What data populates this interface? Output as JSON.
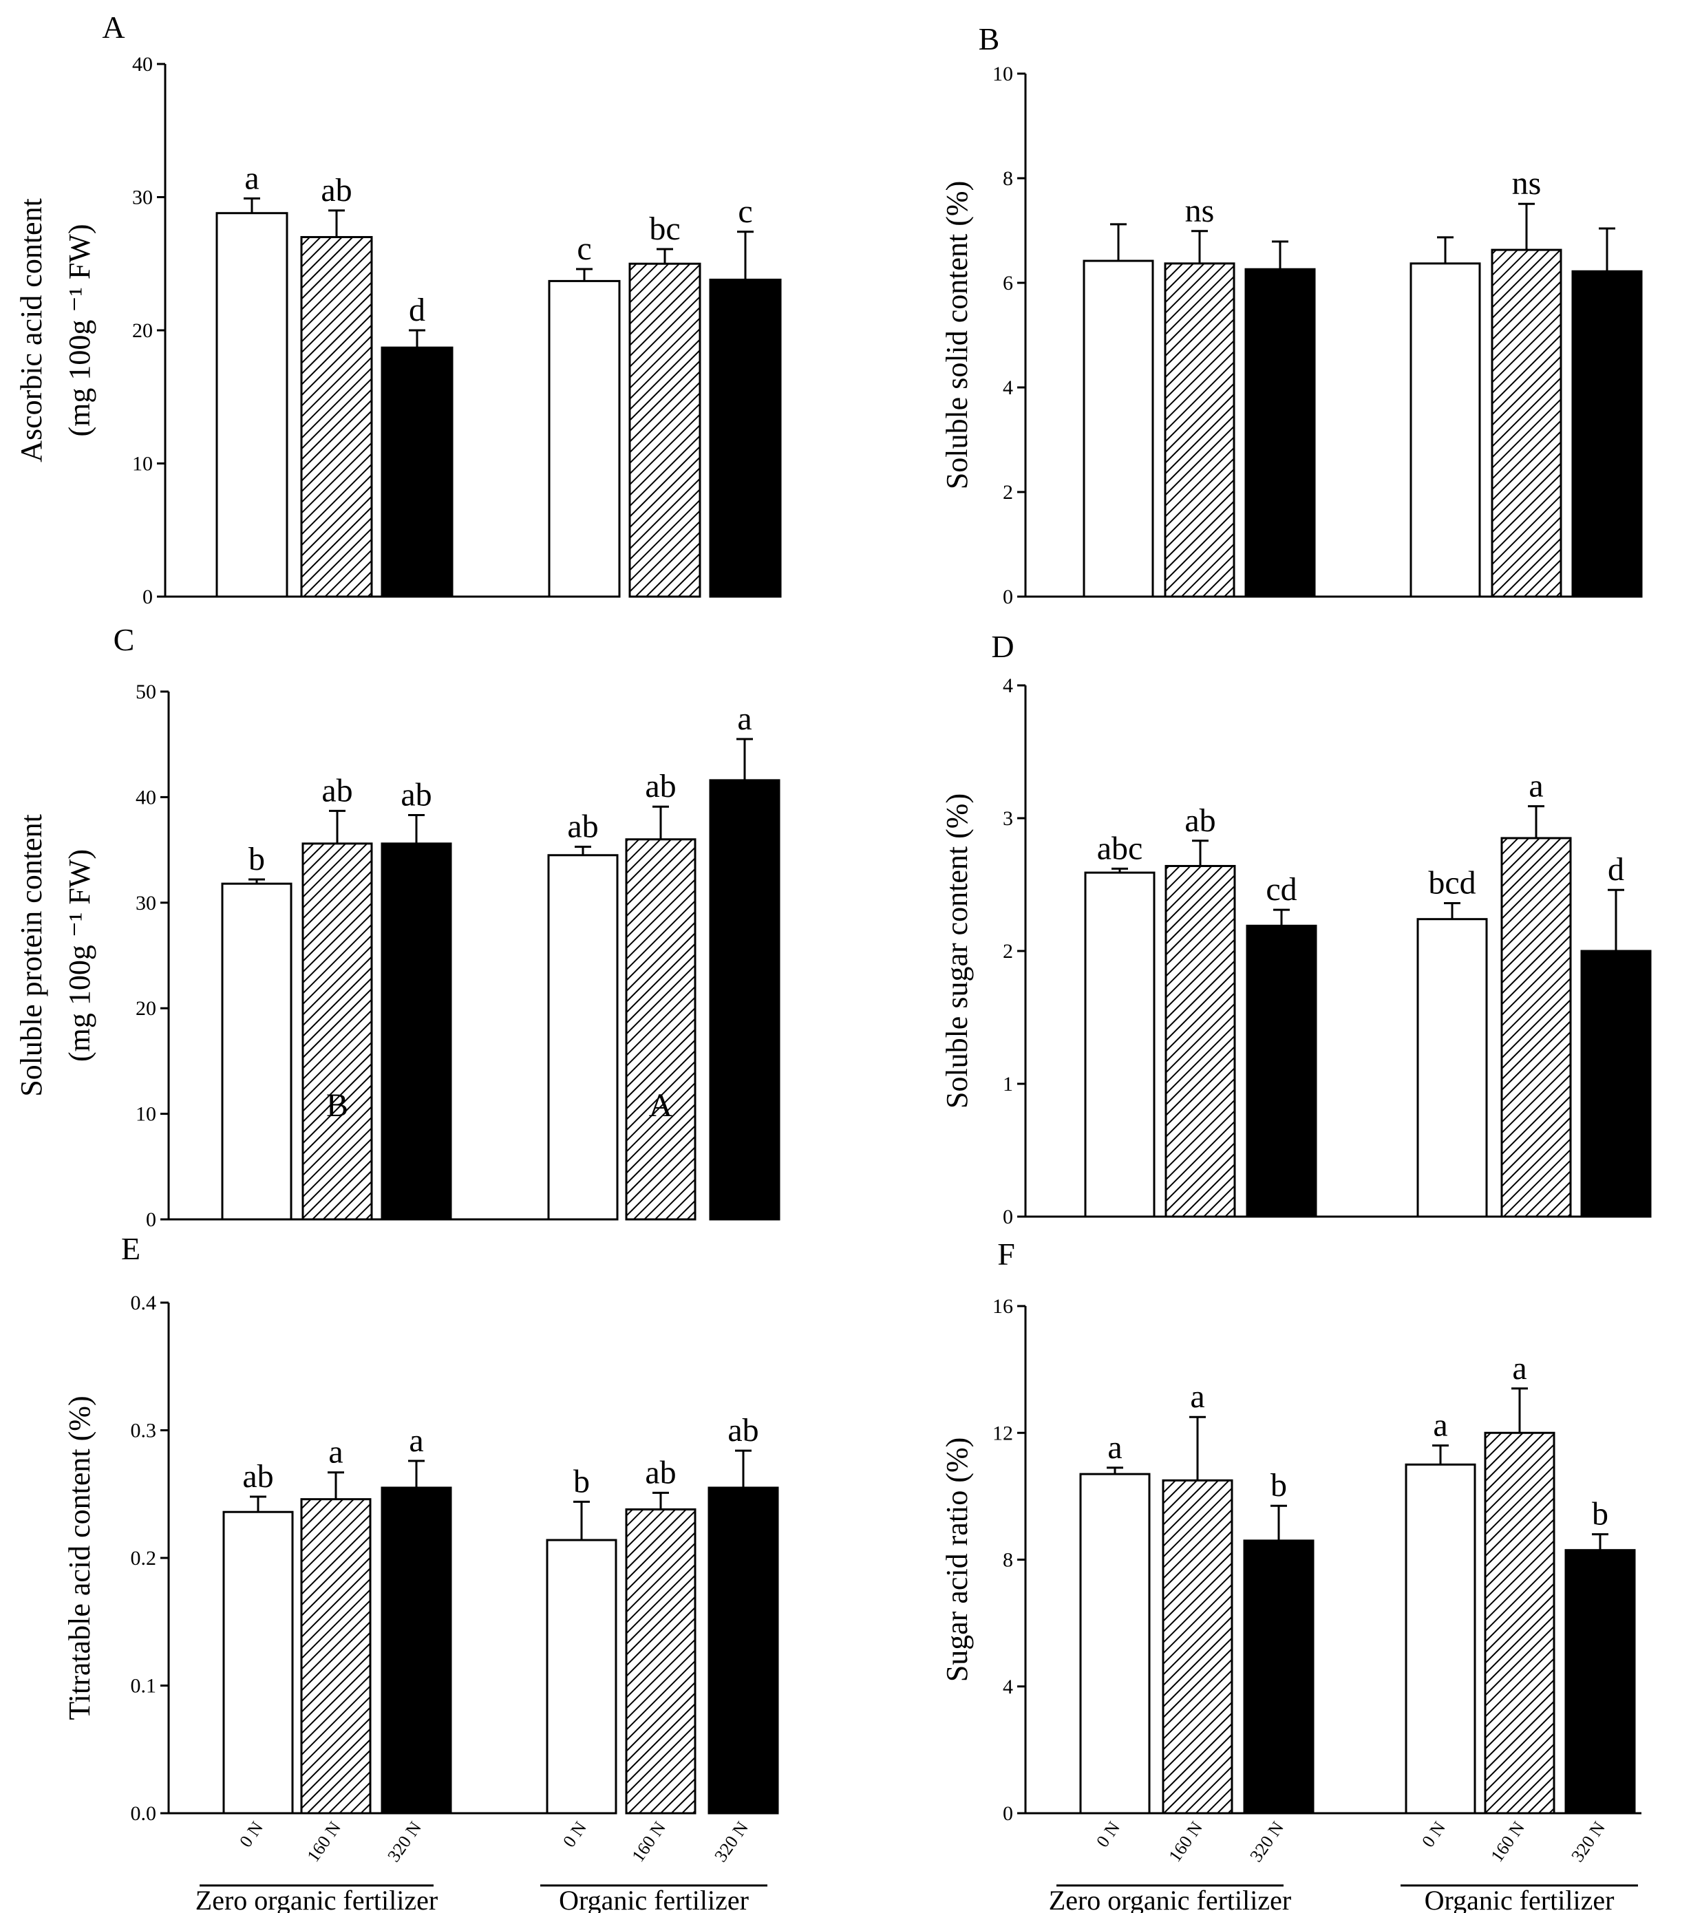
{
  "chart_data": [
    {
      "panel": "A",
      "type": "bar",
      "ylabel_lines": [
        "Ascorbic acid content",
        "(mg 100g ⁻¹ FW)"
      ],
      "ylim": [
        0,
        40
      ],
      "yticks": [
        "0",
        "10",
        "20",
        "30",
        "40"
      ],
      "groups": [
        "Zero organic fertilizer",
        "Organic fertilizer"
      ],
      "categories": [
        "0 N",
        "160 N",
        "320 N"
      ],
      "values": [
        [
          28.8,
          27.0,
          18.7
        ],
        [
          23.7,
          25.0,
          23.8
        ]
      ],
      "errors": [
        [
          1.1,
          2.0,
          1.3
        ],
        [
          0.9,
          1.1,
          3.6
        ]
      ],
      "labels": [
        [
          "a",
          "ab",
          "d"
        ],
        [
          "c",
          "bc",
          "c"
        ]
      ],
      "bar_labels": [
        "",
        ""
      ],
      "show_x_labels": false
    },
    {
      "panel": "B",
      "type": "bar",
      "ylabel_lines": [
        "Soluble solid content (%)"
      ],
      "ylim": [
        0,
        10
      ],
      "yticks": [
        "0",
        "2",
        "4",
        "6",
        "8",
        "10"
      ],
      "groups": [
        "Zero organic fertilizer",
        "Organic fertilizer"
      ],
      "categories": [
        "0 N",
        "160 N",
        "320 N"
      ],
      "values": [
        [
          6.42,
          6.37,
          6.26
        ],
        [
          6.37,
          6.63,
          6.22
        ]
      ],
      "errors": [
        [
          0.7,
          0.62,
          0.53
        ],
        [
          0.5,
          0.88,
          0.82
        ]
      ],
      "labels": [
        [
          "",
          "ns",
          ""
        ],
        [
          "",
          "ns",
          ""
        ]
      ],
      "bar_labels": [
        "",
        ""
      ],
      "show_x_labels": false
    },
    {
      "panel": "C",
      "type": "bar",
      "ylabel_lines": [
        "Soluble protein content",
        "(mg 100g ⁻¹ FW)"
      ],
      "ylim": [
        0,
        50
      ],
      "yticks": [
        "0",
        "10",
        "20",
        "30",
        "40",
        "50"
      ],
      "groups": [
        "Zero organic fertilizer",
        "Organic fertilizer"
      ],
      "categories": [
        "0 N",
        "160 N",
        "320 N"
      ],
      "values": [
        [
          31.8,
          35.6,
          35.6
        ],
        [
          34.5,
          36.0,
          41.6
        ]
      ],
      "errors": [
        [
          0.4,
          3.1,
          2.7
        ],
        [
          0.8,
          3.1,
          3.9
        ]
      ],
      "labels": [
        [
          "b",
          "ab",
          "ab"
        ],
        [
          "ab",
          "ab",
          "a"
        ]
      ],
      "bar_labels": [
        "B",
        "A"
      ],
      "show_x_labels": false
    },
    {
      "panel": "D",
      "type": "bar",
      "ylabel_lines": [
        "Soluble sugar content (%)"
      ],
      "ylim": [
        0,
        4
      ],
      "yticks": [
        "0",
        "1",
        "2",
        "3",
        "4"
      ],
      "groups": [
        "Zero organic fertilizer",
        "Organic fertilizer"
      ],
      "categories": [
        "0 N",
        "160 N",
        "320 N"
      ],
      "values": [
        [
          2.59,
          2.64,
          2.19
        ],
        [
          2.24,
          2.85,
          2.0
        ]
      ],
      "errors": [
        [
          0.03,
          0.19,
          0.12
        ],
        [
          0.12,
          0.24,
          0.46
        ]
      ],
      "labels": [
        [
          "abc",
          "ab",
          "cd"
        ],
        [
          "bcd",
          "a",
          "d"
        ]
      ],
      "bar_labels": [
        "",
        ""
      ],
      "show_x_labels": false
    },
    {
      "panel": "E",
      "type": "bar",
      "ylabel_lines": [
        "Titratable acid content  (%)"
      ],
      "ylim": [
        0,
        0.4
      ],
      "yticks": [
        "0.0",
        "0.1",
        "0.2",
        "0.3",
        "0.4"
      ],
      "groups": [
        "Zero organic fertilizer",
        "Organic fertilizer"
      ],
      "categories": [
        "0 N",
        "160 N",
        "320 N"
      ],
      "values": [
        [
          0.236,
          0.246,
          0.255
        ],
        [
          0.214,
          0.238,
          0.255
        ]
      ],
      "errors": [
        [
          0.012,
          0.021,
          0.021
        ],
        [
          0.03,
          0.013,
          0.029
        ]
      ],
      "labels": [
        [
          "ab",
          "a",
          "a"
        ],
        [
          "b",
          "ab",
          "ab"
        ]
      ],
      "bar_labels": [
        "",
        ""
      ],
      "show_x_labels": true
    },
    {
      "panel": "F",
      "type": "bar",
      "ylabel_lines": [
        "Sugar acid ratio (%)"
      ],
      "ylim": [
        0,
        16
      ],
      "yticks": [
        "0",
        "4",
        "8",
        "12",
        "16"
      ],
      "groups": [
        "Zero organic fertilizer",
        "Organic fertilizer"
      ],
      "categories": [
        "0 N",
        "160 N",
        "320 N"
      ],
      "values": [
        [
          10.7,
          10.5,
          8.6
        ],
        [
          11.0,
          12.0,
          8.3
        ]
      ],
      "errors": [
        [
          0.2,
          2.0,
          1.1
        ],
        [
          0.6,
          1.4,
          0.5
        ]
      ],
      "labels": [
        [
          "a",
          "a",
          "b"
        ],
        [
          "a",
          "a",
          "b"
        ]
      ],
      "bar_labels": [
        "",
        ""
      ],
      "show_x_labels": true
    }
  ]
}
